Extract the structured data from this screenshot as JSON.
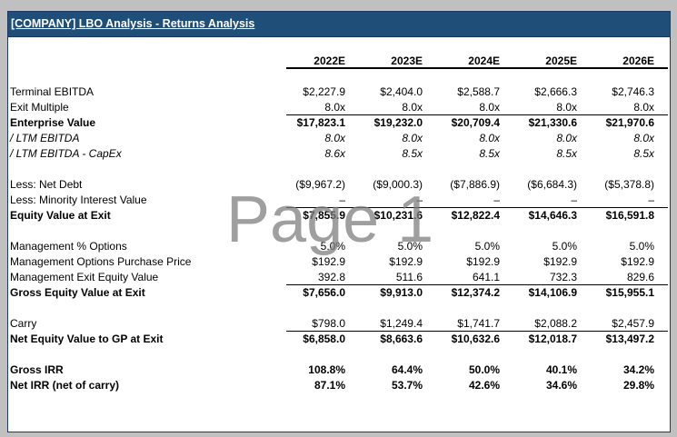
{
  "title": "[COMPANY] LBO Analysis - Returns Analysis",
  "watermark": "Page 1",
  "years": [
    "2022E",
    "2023E",
    "2024E",
    "2025E",
    "2026E"
  ],
  "rows": {
    "terminal_ebitda": {
      "label": "Terminal EBITDA",
      "values": [
        "$2,227.9",
        "$2,404.0",
        "$2,588.7",
        "$2,666.3",
        "$2,746.3"
      ]
    },
    "exit_multiple": {
      "label": "Exit Multiple",
      "values": [
        "8.0x",
        "8.0x",
        "8.0x",
        "8.0x",
        "8.0x"
      ]
    },
    "enterprise_value": {
      "label": "Enterprise Value",
      "values": [
        "$17,823.1",
        "$19,232.0",
        "$20,709.4",
        "$21,330.6",
        "$21,970.6"
      ]
    },
    "ltm_ebitda": {
      "label": "/ LTM EBITDA",
      "values": [
        "8.0x",
        "8.0x",
        "8.0x",
        "8.0x",
        "8.0x"
      ]
    },
    "ltm_ebitda_capex": {
      "label": "/ LTM EBITDA - CapEx",
      "values": [
        "8.6x",
        "8.5x",
        "8.5x",
        "8.5x",
        "8.5x"
      ]
    },
    "net_debt": {
      "label": "Less: Net Debt",
      "values": [
        "($9,967.2)",
        "($9,000.3)",
        "($7,886.9)",
        "($6,684.3)",
        "($5,378.8)"
      ]
    },
    "minority_interest": {
      "label": "Less: Minority Interest Value",
      "values": [
        "–",
        "–",
        "–",
        "–",
        "–"
      ]
    },
    "equity_value_exit": {
      "label": "Equity Value at Exit",
      "values": [
        "$7,855.9",
        "$10,231.6",
        "$12,822.4",
        "$14,646.3",
        "$16,591.8"
      ]
    },
    "mgmt_pct_options": {
      "label": "Management % Options",
      "values": [
        "5.0%",
        "5.0%",
        "5.0%",
        "5.0%",
        "5.0%"
      ]
    },
    "mgmt_options_price": {
      "label": "Management Options Purchase Price",
      "values": [
        "$192.9",
        "$192.9",
        "$192.9",
        "$192.9",
        "$192.9"
      ]
    },
    "mgmt_exit_equity": {
      "label": "Management Exit Equity Value",
      "values": [
        "392.8",
        "511.6",
        "641.1",
        "732.3",
        "829.6"
      ]
    },
    "gross_equity_exit": {
      "label": "Gross Equity Value at Exit",
      "values": [
        "$7,656.0",
        "$9,913.0",
        "$12,374.2",
        "$14,106.9",
        "$15,955.1"
      ]
    },
    "carry": {
      "label": "Carry",
      "values": [
        "$798.0",
        "$1,249.4",
        "$1,741.7",
        "$2,088.2",
        "$2,457.9"
      ]
    },
    "net_equity_gp": {
      "label": "Net Equity Value to GP at Exit",
      "values": [
        "$6,858.0",
        "$8,663.6",
        "$10,632.6",
        "$12,018.7",
        "$13,497.2"
      ]
    },
    "gross_irr": {
      "label": "Gross IRR",
      "values": [
        "108.8%",
        "64.4%",
        "50.0%",
        "40.1%",
        "34.2%"
      ]
    },
    "net_irr": {
      "label": "Net IRR (net of carry)",
      "values": [
        "87.1%",
        "53.7%",
        "42.6%",
        "34.6%",
        "29.8%"
      ]
    }
  }
}
